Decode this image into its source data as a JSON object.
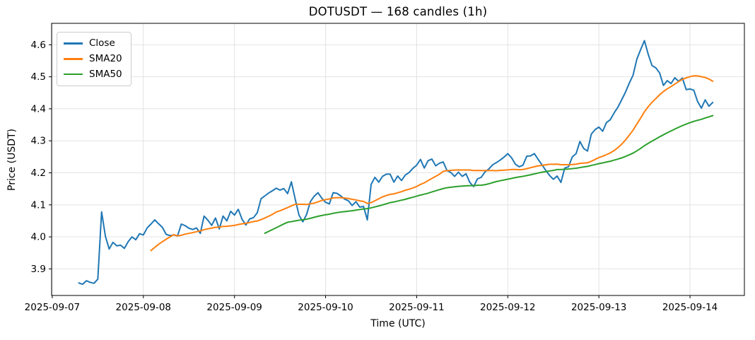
{
  "title": "DOTUSDT — 168 candles (1h)",
  "chart_data": {
    "type": "line",
    "title": "DOTUSDT — 168 candles (1h)",
    "xlabel": "Time (UTC)",
    "ylabel": "Price (USDT)",
    "grid": true,
    "legend_position": "upper left",
    "background_color": "#ffffff",
    "grid_color": "#e2e2e2",
    "spine_color": "#000000",
    "ylim": [
      3.817,
      4.667
    ],
    "x_index_range": [
      -7.17,
      175.33
    ],
    "y_ticks": [
      3.9,
      4.0,
      4.1,
      4.2,
      4.3,
      4.4,
      4.5,
      4.6
    ],
    "y_tick_labels": [
      "3.9",
      "4.0",
      "4.1",
      "4.2",
      "4.3",
      "4.4",
      "4.5",
      "4.6"
    ],
    "x_ticks": [
      {
        "label": "2025-09-07",
        "index": -7
      },
      {
        "label": "2025-09-08",
        "index": 17
      },
      {
        "label": "2025-09-09",
        "index": 41
      },
      {
        "label": "2025-09-10",
        "index": 65
      },
      {
        "label": "2025-09-11",
        "index": 89
      },
      {
        "label": "2025-09-12",
        "index": 113
      },
      {
        "label": "2025-09-13",
        "index": 137
      },
      {
        "label": "2025-09-14",
        "index": 161
      }
    ],
    "candles": 168,
    "interval": "1h",
    "series": [
      {
        "name": "Close",
        "color": "#1f77b4",
        "values": [
          3.856,
          3.852,
          3.863,
          3.858,
          3.855,
          3.868,
          4.078,
          4.002,
          3.962,
          3.983,
          3.972,
          3.974,
          3.964,
          3.985,
          4.0,
          3.991,
          4.01,
          4.006,
          4.028,
          4.04,
          4.053,
          4.041,
          4.03,
          4.008,
          4.004,
          4.006,
          4.003,
          4.04,
          4.035,
          4.027,
          4.023,
          4.028,
          4.011,
          4.065,
          4.052,
          4.036,
          4.059,
          4.025,
          4.065,
          4.05,
          4.08,
          4.068,
          4.086,
          4.055,
          4.037,
          4.056,
          4.06,
          4.075,
          4.119,
          4.128,
          4.137,
          4.144,
          4.152,
          4.146,
          4.151,
          4.135,
          4.172,
          4.118,
          4.068,
          4.047,
          4.07,
          4.11,
          4.127,
          4.138,
          4.121,
          4.108,
          4.103,
          4.138,
          4.136,
          4.128,
          4.118,
          4.113,
          4.098,
          4.11,
          4.093,
          4.095,
          4.053,
          4.164,
          4.186,
          4.171,
          4.189,
          4.196,
          4.196,
          4.171,
          4.19,
          4.176,
          4.193,
          4.201,
          4.214,
          4.224,
          4.242,
          4.215,
          4.238,
          4.243,
          4.222,
          4.23,
          4.234,
          4.207,
          4.201,
          4.189,
          4.202,
          4.189,
          4.197,
          4.17,
          4.157,
          4.181,
          4.186,
          4.203,
          4.212,
          4.225,
          4.232,
          4.24,
          4.249,
          4.26,
          4.247,
          4.227,
          4.219,
          4.224,
          4.252,
          4.253,
          4.26,
          4.242,
          4.225,
          4.208,
          4.192,
          4.18,
          4.19,
          4.17,
          4.215,
          4.219,
          4.25,
          4.26,
          4.298,
          4.276,
          4.268,
          4.321,
          4.335,
          4.343,
          4.33,
          4.357,
          4.366,
          4.387,
          4.405,
          4.428,
          4.452,
          4.48,
          4.505,
          4.555,
          4.585,
          4.613,
          4.57,
          4.535,
          4.528,
          4.512,
          4.473,
          4.488,
          4.479,
          4.497,
          4.486,
          4.496,
          4.46,
          4.462,
          4.458,
          4.423,
          4.402,
          4.428,
          4.408,
          4.42
        ]
      },
      {
        "name": "SMA20",
        "color": "#ff7f0e",
        "derived": "sma_of_close",
        "window": 20
      },
      {
        "name": "SMA50",
        "color": "#2ca02c",
        "derived": "sma_of_close",
        "window": 50
      }
    ]
  }
}
